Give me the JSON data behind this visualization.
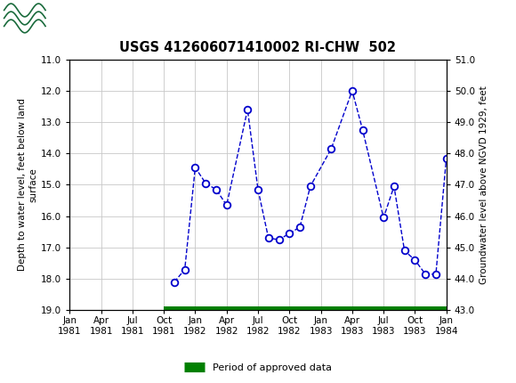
{
  "title": "USGS 412606071410002 RI-CHW  502",
  "header_color": "#1a6b3c",
  "header_text_color": "#ffffff",
  "ylabel_left": "Depth to water level, feet below land\nsurface",
  "ylabel_right": "Groundwater level above NGVD 1929, feet",
  "ylim_left": [
    19.0,
    11.0
  ],
  "ylim_right_labels": [
    51.0,
    50.0,
    49.0,
    48.0,
    47.0,
    46.0,
    45.0,
    44.0,
    43.0
  ],
  "yticks_left": [
    11.0,
    12.0,
    13.0,
    14.0,
    15.0,
    16.0,
    17.0,
    18.0,
    19.0
  ],
  "background_color": "#ffffff",
  "plot_bg_color": "#ffffff",
  "line_color": "#0000cc",
  "marker_facecolor": "#ffffff",
  "marker_edgecolor": "#0000cc",
  "grid_color": "#c8c8c8",
  "approved_data_color": "#008000",
  "xtick_positions": [
    0,
    3,
    6,
    9,
    12,
    15,
    18,
    21,
    24,
    27,
    30,
    33,
    36
  ],
  "xtick_labels": [
    "Jan\n1981",
    "Apr\n1981",
    "Jul\n1981",
    "Oct\n1981",
    "Jan\n1982",
    "Apr\n1982",
    "Jul\n1982",
    "Oct\n1982",
    "Jan\n1983",
    "Apr\n1983",
    "Jul\n1983",
    "Oct\n1983",
    "Jan\n1984"
  ],
  "data_months": [
    10,
    11,
    12,
    13,
    14,
    15,
    17,
    18,
    19,
    20,
    21,
    22,
    23,
    25,
    27,
    28,
    30,
    31,
    32,
    33,
    34,
    35,
    36
  ],
  "data_y": [
    18.1,
    17.7,
    14.45,
    14.95,
    15.15,
    15.65,
    12.6,
    15.15,
    16.7,
    16.75,
    16.55,
    16.35,
    15.05,
    13.85,
    12.0,
    13.25,
    16.05,
    15.05,
    17.1,
    17.4,
    17.85,
    17.85,
    14.15
  ],
  "approved_start": 9,
  "approved_end": 36,
  "legend_label": "Period of approved data",
  "xlim": [
    0,
    36
  ],
  "figsize": [
    5.8,
    4.3
  ],
  "dpi": 100
}
